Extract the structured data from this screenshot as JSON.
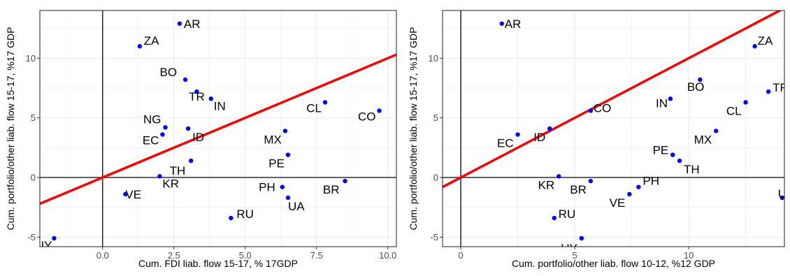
{
  "colors": {
    "points": "#0000ff",
    "fit_line": "#ff0000",
    "grid": "#ebebeb",
    "axis_lines": "#000000"
  },
  "chart_data": [
    {
      "type": "scatter",
      "title": "",
      "xlabel": "Cum. FDI liab. flow 15-17, % 17GDP",
      "ylabel": "Cum. portfolio/other liab. flow 15-17, %17 GDP",
      "xlim": [
        -2.2,
        10.3
      ],
      "ylim": [
        -5.8,
        14.0
      ],
      "xticks": [
        0.0,
        2.5,
        5.0,
        7.5,
        10.0
      ],
      "xtick_labels": [
        "0.0",
        "2.5",
        "5.0",
        "7.5",
        "10.0"
      ],
      "yticks": [
        -5,
        0,
        5,
        10
      ],
      "ytick_labels": [
        "-5",
        "0",
        "5",
        "10"
      ],
      "grid": true,
      "legend": "none",
      "fit_line": {
        "intercept": 0.0,
        "slope": 1.0
      },
      "points": [
        {
          "label": "AR",
          "x": 2.7,
          "y": 12.9
        },
        {
          "label": "ZA",
          "x": 1.3,
          "y": 11.0
        },
        {
          "label": "BO",
          "x": 2.9,
          "y": 8.2
        },
        {
          "label": "TR",
          "x": 3.3,
          "y": 7.2
        },
        {
          "label": "IN",
          "x": 3.8,
          "y": 6.6
        },
        {
          "label": "CL",
          "x": 7.8,
          "y": 6.3
        },
        {
          "label": "CO",
          "x": 9.7,
          "y": 5.6
        },
        {
          "label": "NG",
          "x": 2.2,
          "y": 4.2
        },
        {
          "label": "ID",
          "x": 3.0,
          "y": 4.1
        },
        {
          "label": "EC",
          "x": 2.1,
          "y": 3.6
        },
        {
          "label": "MX",
          "x": 6.4,
          "y": 3.9
        },
        {
          "label": "PE",
          "x": 6.5,
          "y": 1.9
        },
        {
          "label": "TH",
          "x": 3.1,
          "y": 1.4
        },
        {
          "label": "KR",
          "x": 2.0,
          "y": 0.1
        },
        {
          "label": "VE",
          "x": 0.8,
          "y": -1.4
        },
        {
          "label": "PH",
          "x": 6.3,
          "y": -0.8
        },
        {
          "label": "UA",
          "x": 6.5,
          "y": -1.7
        },
        {
          "label": "BR",
          "x": 8.5,
          "y": -0.3
        },
        {
          "label": "RU",
          "x": 4.5,
          "y": -3.4
        },
        {
          "label": "UY",
          "x": -1.7,
          "y": -5.1
        }
      ]
    },
    {
      "type": "scatter",
      "title": "",
      "xlabel": "Cum. portfolio/other liab. flow 10-12, %12 GDP",
      "ylabel": "Cum. portfolio/other liab. flow 15-17, %17 GDP",
      "xlim": [
        -0.8,
        14.2
      ],
      "ylim": [
        -5.8,
        14.0
      ],
      "xticks": [
        0,
        5,
        10
      ],
      "xtick_labels": [
        "0",
        "5",
        "10"
      ],
      "yticks": [
        -5,
        0,
        5,
        10
      ],
      "ytick_labels": [
        "-5",
        "0",
        "5",
        "10"
      ],
      "grid": true,
      "legend": "none",
      "fit_line": {
        "intercept": 0.0,
        "slope": 1.0
      },
      "points": [
        {
          "label": "AR",
          "x": 1.8,
          "y": 12.9
        },
        {
          "label": "ZA",
          "x": 12.9,
          "y": 11.0
        },
        {
          "label": "TR",
          "x": 13.5,
          "y": 7.2
        },
        {
          "label": "BO",
          "x": 10.5,
          "y": 8.2
        },
        {
          "label": "IN",
          "x": 9.2,
          "y": 6.6
        },
        {
          "label": "CL",
          "x": 12.5,
          "y": 6.3
        },
        {
          "label": "CO",
          "x": 5.7,
          "y": 5.6
        },
        {
          "label": "MX",
          "x": 11.2,
          "y": 3.9
        },
        {
          "label": "ID",
          "x": 3.9,
          "y": 4.1
        },
        {
          "label": "EC",
          "x": 2.5,
          "y": 3.6
        },
        {
          "label": "PE",
          "x": 9.3,
          "y": 1.9
        },
        {
          "label": "TH",
          "x": 9.6,
          "y": 1.4
        },
        {
          "label": "KR",
          "x": 4.3,
          "y": 0.1
        },
        {
          "label": "BR",
          "x": 5.7,
          "y": -0.3
        },
        {
          "label": "PH",
          "x": 7.8,
          "y": -0.8
        },
        {
          "label": "VE",
          "x": 7.4,
          "y": -1.4
        },
        {
          "label": "UA",
          "x": 14.1,
          "y": -1.7
        },
        {
          "label": "RU",
          "x": 4.1,
          "y": -3.4
        },
        {
          "label": "UY",
          "x": 5.3,
          "y": -5.1
        }
      ]
    }
  ]
}
